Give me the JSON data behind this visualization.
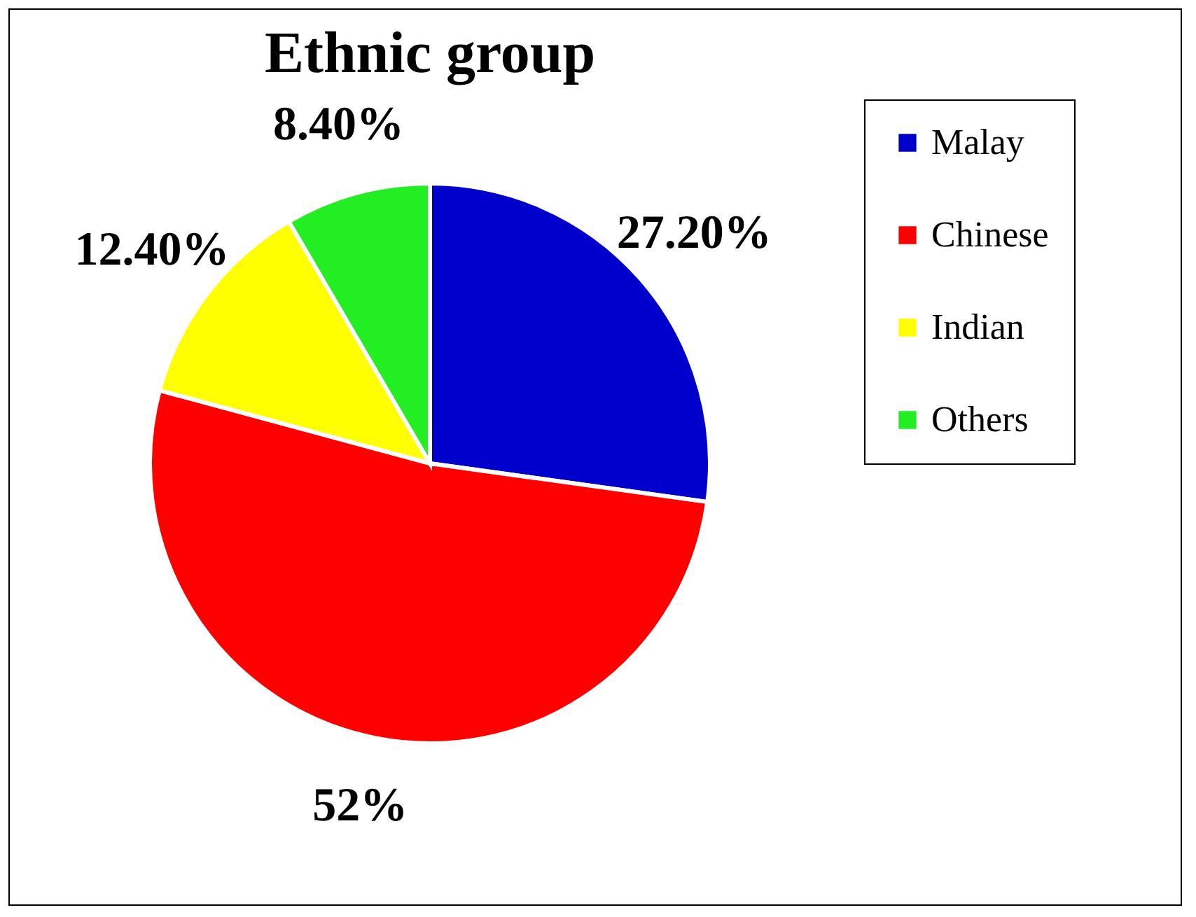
{
  "chart_data": {
    "type": "pie",
    "title": "Ethnic group",
    "categories": [
      "Malay",
      "Chinese",
      "Indian",
      "Others"
    ],
    "values": [
      27.2,
      52,
      12.4,
      8.4
    ],
    "colors": [
      "#0000cc",
      "#ff0000",
      "#ffff00",
      "#22ee22"
    ],
    "value_labels": [
      "27.20%",
      "52%",
      "12.40%",
      "8.40%"
    ],
    "legend": "right"
  }
}
